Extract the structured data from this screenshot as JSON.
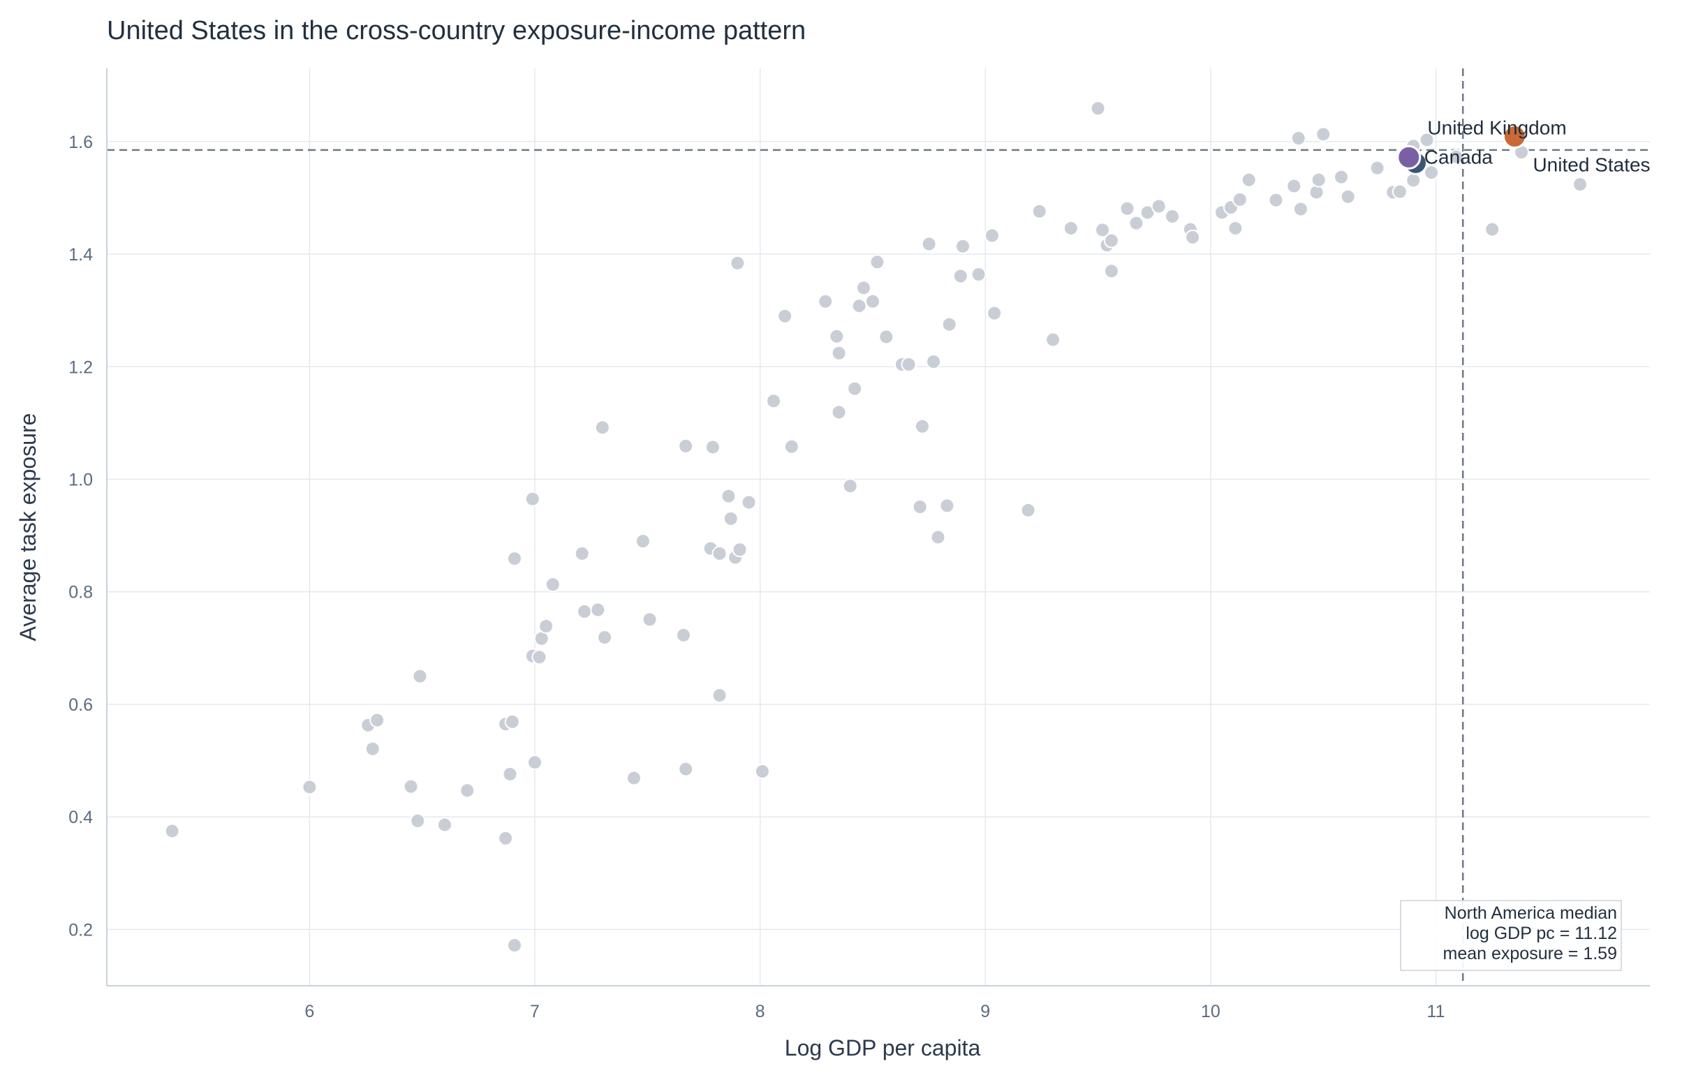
{
  "colors": {
    "background_point": "#c9ced6",
    "united_states": "#3b5675",
    "canada": "#7b5fa5",
    "united_kingdom": "#c96a36",
    "gridline": "#e4e8ee",
    "axis": "#c8d2dc",
    "reference_line": "#6f7886"
  },
  "chart_data": {
    "type": "scatter",
    "title": "United States in the cross-country exposure-income pattern",
    "xlabel": "Log GDP per capita",
    "ylabel": "Average task exposure",
    "xlim": [
      5.1,
      11.95
    ],
    "ylim": [
      0.1,
      1.73
    ],
    "xticks": [
      6,
      7,
      8,
      9,
      10,
      11
    ],
    "yticks": [
      0.2,
      0.4,
      0.6,
      0.8,
      1.0,
      1.2,
      1.4,
      1.6
    ],
    "xtick_labels": [
      "6",
      "7",
      "8",
      "9",
      "10",
      "11"
    ],
    "ytick_labels": [
      "0.2",
      "0.4",
      "0.6",
      "0.8",
      "1.0",
      "1.2",
      "1.4",
      "1.6"
    ],
    "grid": true,
    "reference_lines": {
      "x": 11.12,
      "y": 1.585
    },
    "annotation": {
      "lines": [
        "North America median",
        "log GDP pc = 11.12",
        "mean exposure = 1.59"
      ],
      "placement": "bottom-right"
    },
    "background_points": [
      [
        5.39,
        0.375
      ],
      [
        6.0,
        0.453
      ],
      [
        6.26,
        0.563
      ],
      [
        6.28,
        0.521
      ],
      [
        6.3,
        0.572
      ],
      [
        6.45,
        0.454
      ],
      [
        6.48,
        0.393
      ],
      [
        6.49,
        0.65
      ],
      [
        6.6,
        0.386
      ],
      [
        6.7,
        0.447
      ],
      [
        6.87,
        0.565
      ],
      [
        6.87,
        0.362
      ],
      [
        6.89,
        0.476
      ],
      [
        6.9,
        0.569
      ],
      [
        6.91,
        0.859
      ],
      [
        6.91,
        0.172
      ],
      [
        6.99,
        0.686
      ],
      [
        6.99,
        0.965
      ],
      [
        7.0,
        0.497
      ],
      [
        7.02,
        0.684
      ],
      [
        7.03,
        0.717
      ],
      [
        7.05,
        0.739
      ],
      [
        7.08,
        0.813
      ],
      [
        7.21,
        0.868
      ],
      [
        7.22,
        0.765
      ],
      [
        7.28,
        0.768
      ],
      [
        7.3,
        1.092
      ],
      [
        7.31,
        0.719
      ],
      [
        7.44,
        0.469
      ],
      [
        7.48,
        0.89
      ],
      [
        7.51,
        0.751
      ],
      [
        7.66,
        0.723
      ],
      [
        7.67,
        1.059
      ],
      [
        7.67,
        0.485
      ],
      [
        7.78,
        0.877
      ],
      [
        7.79,
        1.057
      ],
      [
        7.82,
        0.868
      ],
      [
        7.82,
        0.616
      ],
      [
        7.86,
        0.97
      ],
      [
        7.87,
        0.93
      ],
      [
        7.89,
        0.861
      ],
      [
        7.9,
        1.384
      ],
      [
        7.91,
        0.875
      ],
      [
        7.95,
        0.959
      ],
      [
        8.01,
        0.481
      ],
      [
        8.06,
        1.139
      ],
      [
        8.11,
        1.29
      ],
      [
        8.14,
        1.058
      ],
      [
        8.29,
        1.316
      ],
      [
        8.34,
        1.254
      ],
      [
        8.35,
        1.224
      ],
      [
        8.35,
        1.119
      ],
      [
        8.4,
        0.988
      ],
      [
        8.42,
        1.161
      ],
      [
        8.44,
        1.308
      ],
      [
        8.46,
        1.34
      ],
      [
        8.5,
        1.316
      ],
      [
        8.52,
        1.386
      ],
      [
        8.56,
        1.253
      ],
      [
        8.63,
        1.204
      ],
      [
        8.66,
        1.204
      ],
      [
        8.71,
        0.951
      ],
      [
        8.72,
        1.094
      ],
      [
        8.75,
        1.418
      ],
      [
        8.77,
        1.209
      ],
      [
        8.79,
        0.897
      ],
      [
        8.83,
        0.953
      ],
      [
        8.84,
        1.275
      ],
      [
        8.89,
        1.361
      ],
      [
        8.9,
        1.414
      ],
      [
        8.97,
        1.364
      ],
      [
        9.03,
        1.433
      ],
      [
        9.04,
        1.295
      ],
      [
        9.19,
        0.945
      ],
      [
        9.24,
        1.476
      ],
      [
        9.3,
        1.248
      ],
      [
        9.38,
        1.446
      ],
      [
        9.5,
        1.659
      ],
      [
        9.52,
        1.443
      ],
      [
        9.54,
        1.416
      ],
      [
        9.56,
        1.424
      ],
      [
        9.56,
        1.37
      ],
      [
        9.63,
        1.481
      ],
      [
        9.67,
        1.455
      ],
      [
        9.72,
        1.474
      ],
      [
        9.77,
        1.485
      ],
      [
        9.83,
        1.467
      ],
      [
        9.91,
        1.444
      ],
      [
        9.92,
        1.43
      ],
      [
        10.05,
        1.474
      ],
      [
        10.09,
        1.483
      ],
      [
        10.11,
        1.446
      ],
      [
        10.13,
        1.497
      ],
      [
        10.17,
        1.532
      ],
      [
        10.29,
        1.496
      ],
      [
        10.37,
        1.521
      ],
      [
        10.39,
        1.606
      ],
      [
        10.4,
        1.48
      ],
      [
        10.47,
        1.51
      ],
      [
        10.48,
        1.532
      ],
      [
        10.5,
        1.613
      ],
      [
        10.58,
        1.537
      ],
      [
        10.61,
        1.502
      ],
      [
        10.74,
        1.553
      ],
      [
        10.81,
        1.51
      ],
      [
        10.84,
        1.511
      ],
      [
        10.9,
        1.531
      ],
      [
        10.9,
        1.592
      ],
      [
        10.96,
        1.603
      ],
      [
        10.98,
        1.545
      ],
      [
        11.09,
        1.573
      ],
      [
        11.25,
        1.444
      ],
      [
        11.38,
        1.581
      ],
      [
        11.64,
        1.524
      ]
    ],
    "highlighted_points": [
      {
        "name": "United States",
        "x": 10.91,
        "y": 1.562,
        "color": "#3b5675",
        "label_placement": "far-right-below"
      },
      {
        "name": "Canada",
        "x": 10.88,
        "y": 1.572,
        "color": "#7b5fa5",
        "label_placement": "right"
      },
      {
        "name": "United Kingdom",
        "x": 11.35,
        "y": 1.609,
        "color": "#c96a36",
        "label_placement": "left-above"
      }
    ]
  }
}
